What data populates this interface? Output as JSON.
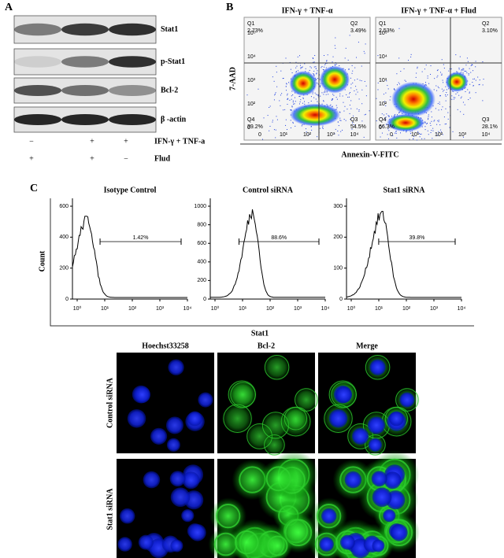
{
  "panel_a": {
    "label": "A",
    "blots": [
      "Stat1",
      "p-Stat1",
      "Bcl-2",
      "β -actin"
    ],
    "conditions": [
      {
        "name": "IFN-γ + TNF-a",
        "signs": [
          "−",
          "+",
          "+"
        ]
      },
      {
        "name": "Flud",
        "signs": [
          "+",
          "+",
          "−"
        ]
      }
    ]
  },
  "panel_b": {
    "label": "B",
    "y_label": "7-AAD",
    "x_label": "Annexin-V-FITC",
    "x_ticks": [
      "0",
      "10¹",
      "10²",
      "10³",
      "10⁴"
    ],
    "y_ticks": [
      "10⁵",
      "10⁴",
      "10³",
      "10²",
      "0"
    ],
    "plots": [
      {
        "title": "IFN-γ + TNF-α",
        "quadrants": [
          {
            "name": "Q1",
            "value": "2.73%"
          },
          {
            "name": "Q2",
            "value": "3.49%"
          },
          {
            "name": "Q4",
            "value": "39.2%"
          },
          {
            "name": "Q3",
            "value": "54.5%"
          }
        ]
      },
      {
        "title": "IFN-γ + TNF-α + Flud",
        "quadrants": [
          {
            "name": "Q1",
            "value": "2.53%"
          },
          {
            "name": "Q2",
            "value": "3.10%"
          },
          {
            "name": "Q4",
            "value": "66.3%"
          },
          {
            "name": "Q3",
            "value": "28.1%"
          }
        ]
      }
    ]
  },
  "panel_c": {
    "label": "C",
    "y_label": "Count",
    "x_label": "Stat1",
    "x_ticks": [
      "10⁰",
      "10¹",
      "10²",
      "10³",
      "10⁴"
    ],
    "plots": [
      {
        "title": "Isotype Control",
        "y_ticks": [
          0,
          200,
          400,
          600
        ],
        "gate": "1.42%"
      },
      {
        "title": "Control siRNA",
        "y_ticks": [
          0,
          200,
          400,
          600,
          800,
          1000
        ],
        "gate": "88.6%"
      },
      {
        "title": "Stat1 siRNA",
        "y_ticks": [
          0,
          100,
          200,
          300
        ],
        "gate": "39.8%"
      }
    ]
  },
  "panel_d": {
    "columns": [
      "Hoechst33258",
      "Bcl-2",
      "Merge"
    ],
    "rows": [
      "Control siRNA",
      "Stat1  siRNA"
    ]
  }
}
